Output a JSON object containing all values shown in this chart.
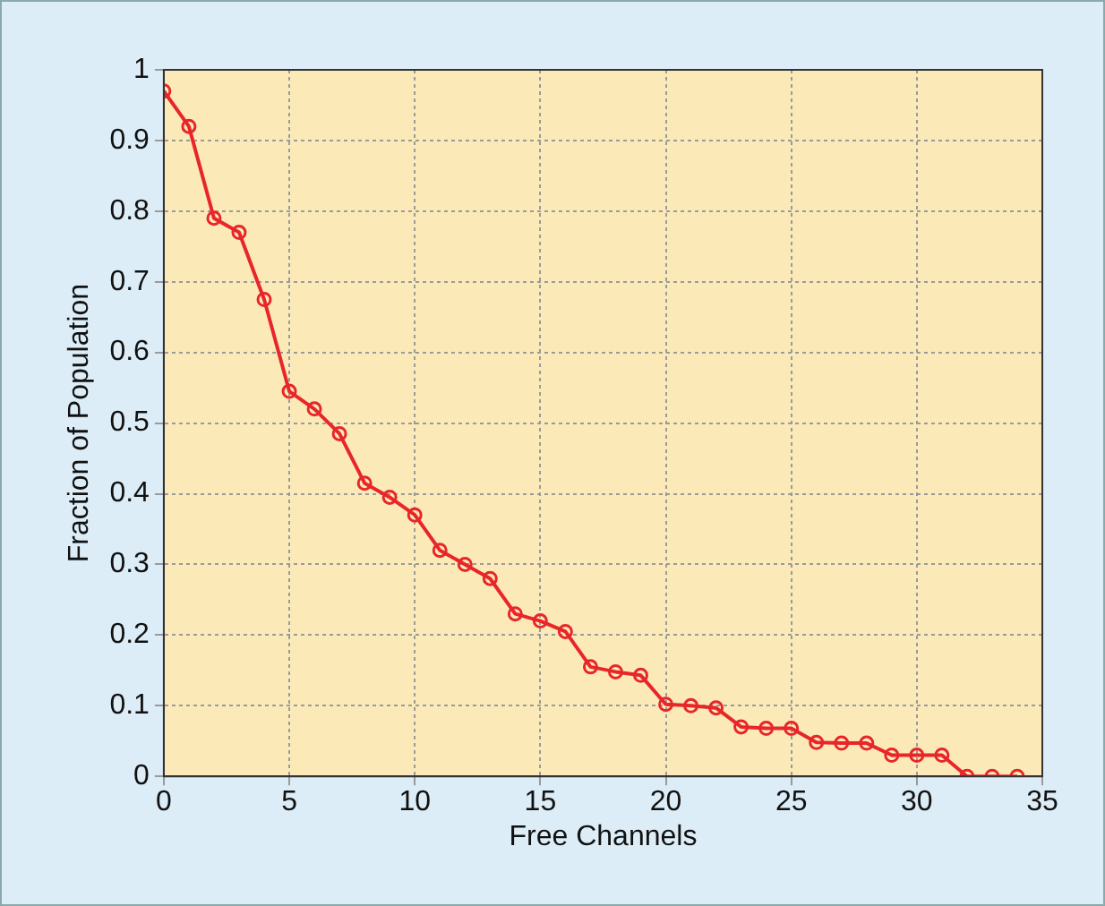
{
  "chart_data": {
    "type": "line",
    "xlabel": "Free Channels",
    "ylabel": "Fraction of Population",
    "x": [
      0,
      1,
      2,
      3,
      4,
      5,
      6,
      7,
      8,
      9,
      10,
      11,
      12,
      13,
      14,
      15,
      16,
      17,
      18,
      19,
      20,
      21,
      22,
      23,
      24,
      25,
      26,
      27,
      28,
      29,
      30,
      31,
      32,
      33,
      34
    ],
    "series": [
      {
        "color": "#e8262a",
        "values": [
          0.97,
          0.92,
          0.79,
          0.77,
          0.675,
          0.545,
          0.52,
          0.485,
          0.415,
          0.395,
          0.37,
          0.32,
          0.3,
          0.28,
          0.23,
          0.22,
          0.205,
          0.155,
          0.148,
          0.143,
          0.102,
          0.1,
          0.097,
          0.07,
          0.068,
          0.068,
          0.048,
          0.047,
          0.047,
          0.03,
          0.03,
          0.03,
          0,
          0,
          0
        ]
      }
    ],
    "xlim": [
      0,
      35
    ],
    "xticks": [
      0,
      5,
      10,
      15,
      20,
      25,
      30,
      35
    ],
    "ylim": [
      0,
      1
    ],
    "yticks": [
      0,
      0.1,
      0.2,
      0.3,
      0.4,
      0.5,
      0.6,
      0.7,
      0.8,
      0.9,
      1
    ],
    "grid": true,
    "legend": false,
    "marker": "circle",
    "line_style": "solid"
  }
}
